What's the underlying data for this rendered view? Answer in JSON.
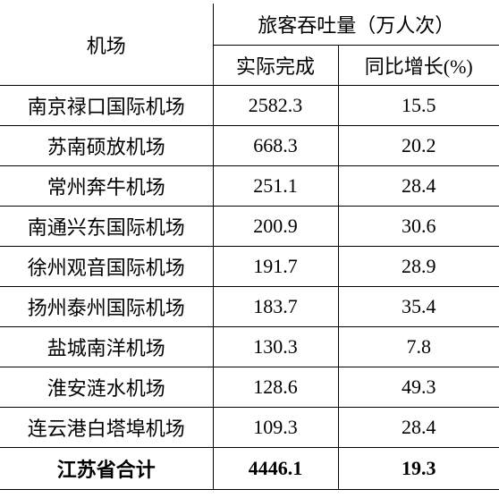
{
  "table": {
    "header": {
      "col0": "机场",
      "group": "旅客吞吐量（万人次）",
      "col1": "实际完成",
      "col2": "同比增长(%)"
    },
    "rows": [
      [
        "南京禄口国际机场",
        "2582.3",
        "15.5"
      ],
      [
        "苏南硕放机场",
        "668.3",
        "20.2"
      ],
      [
        "常州奔牛机场",
        "251.1",
        "28.4"
      ],
      [
        "南通兴东国际机场",
        "200.9",
        "30.6"
      ],
      [
        "徐州观音国际机场",
        "191.7",
        "28.9"
      ],
      [
        "扬州泰州国际机场",
        "183.7",
        "35.4"
      ],
      [
        "盐城南洋机场",
        "130.3",
        "7.8"
      ],
      [
        "淮安涟水机场",
        "128.6",
        "49.3"
      ],
      [
        "连云港白塔埠机场",
        "109.3",
        "28.4"
      ]
    ],
    "total": [
      "江苏省合计",
      "4446.1",
      "19.3"
    ]
  }
}
